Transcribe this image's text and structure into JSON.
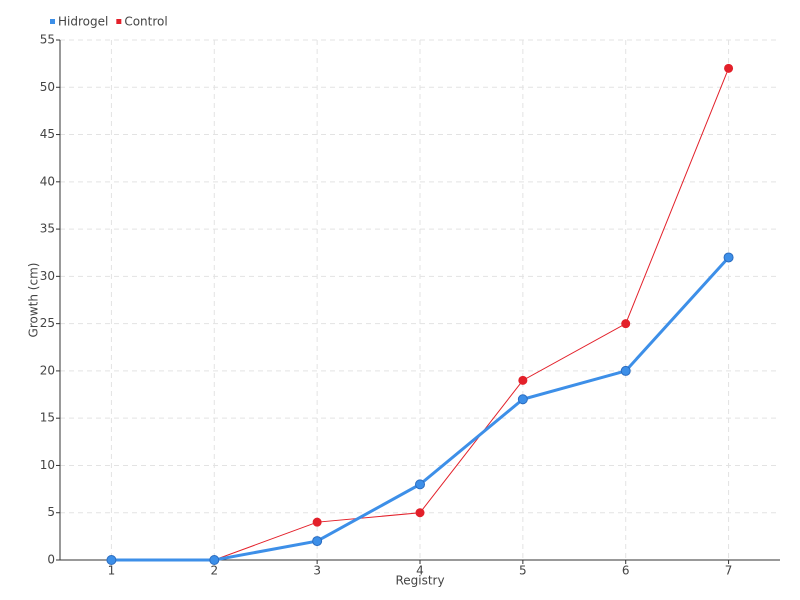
{
  "chart_data": {
    "type": "line",
    "categories": [
      "1",
      "2",
      "3",
      "4",
      "5",
      "6",
      "7"
    ],
    "series": [
      {
        "name": "Hidrogel",
        "color": "#3d8fe8",
        "values": [
          0,
          0,
          2,
          8,
          17,
          20,
          32
        ]
      },
      {
        "name": "Control",
        "color": "#e3202a",
        "values": [
          0,
          0,
          4,
          5,
          19,
          25,
          52
        ]
      }
    ],
    "xlabel": "Registry",
    "ylabel": "Growth (cm)",
    "ylim": [
      0,
      55
    ],
    "yticks": [
      0,
      5,
      10,
      15,
      20,
      25,
      30,
      35,
      40,
      45,
      50,
      55
    ],
    "grid": true,
    "legend": "top-left"
  }
}
